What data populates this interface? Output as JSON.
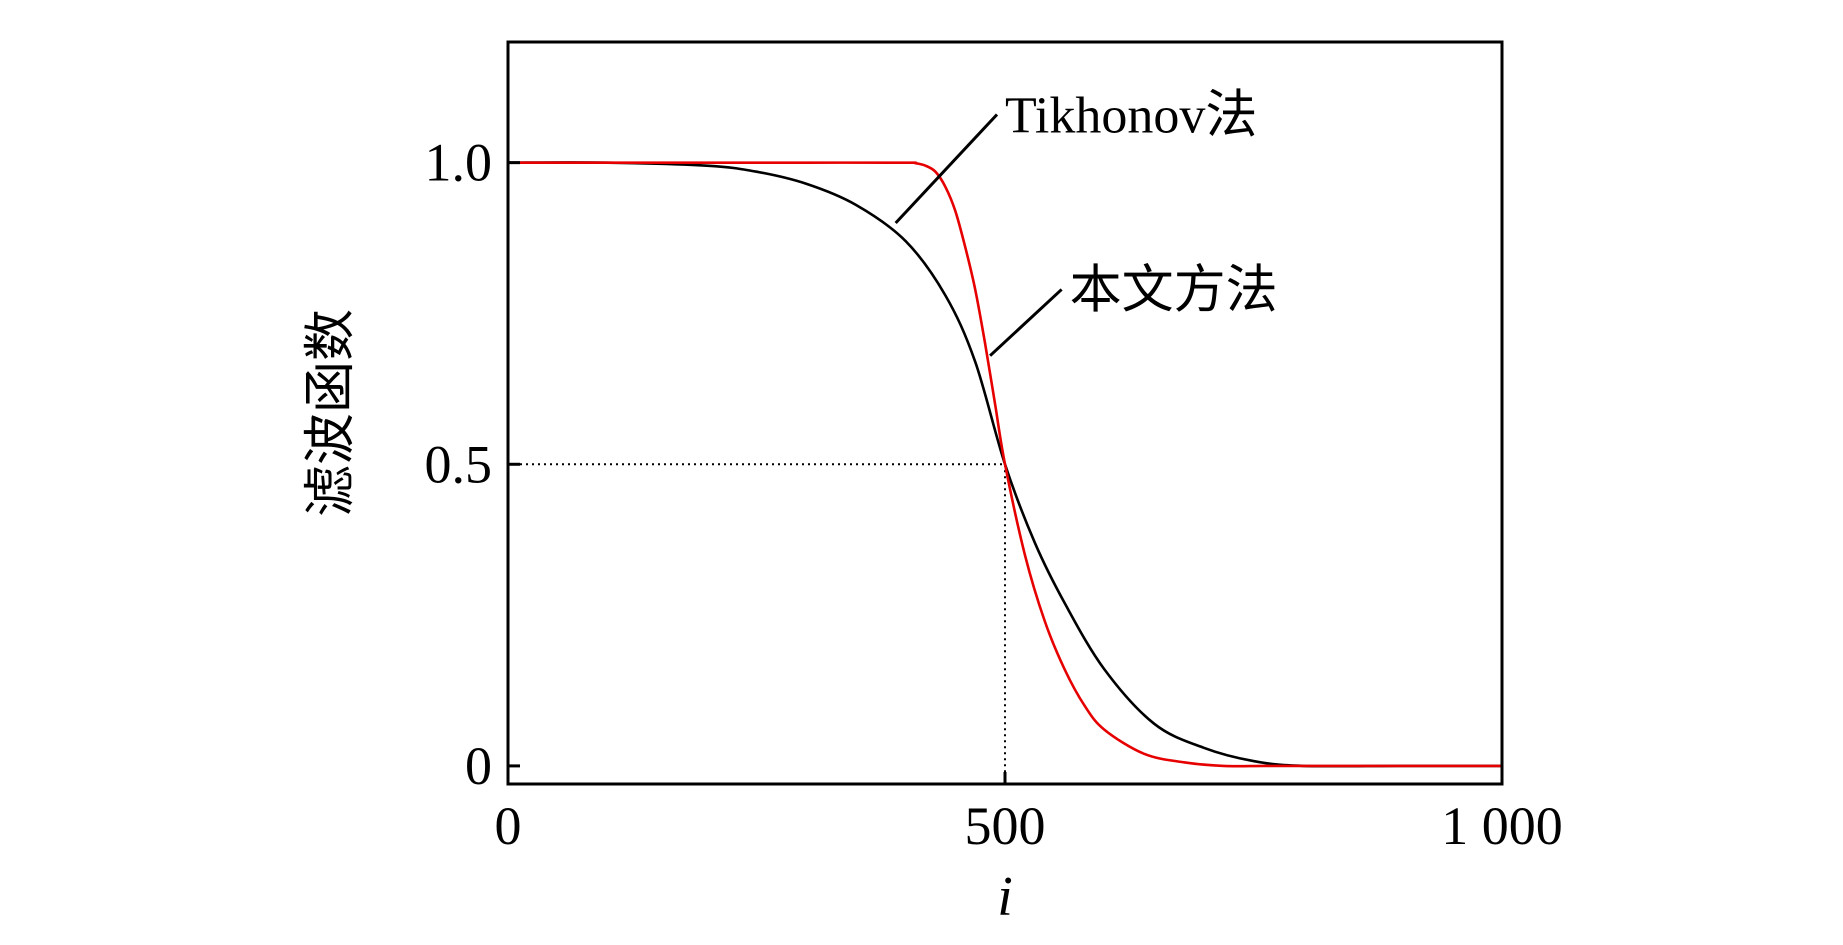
{
  "chart_data": {
    "type": "line",
    "title": "",
    "xlabel": "i",
    "ylabel": "滤波函数",
    "xlim": [
      0,
      1000
    ],
    "ylim": [
      -0.03,
      1.2
    ],
    "x_ticks": [
      {
        "value": 0,
        "label": "0"
      },
      {
        "value": 500,
        "label": "500"
      },
      {
        "value": 1000,
        "label": "1 000"
      }
    ],
    "y_ticks": [
      {
        "value": 0,
        "label": "0"
      },
      {
        "value": 0.5,
        "label": "0.5"
      },
      {
        "value": 1.0,
        "label": "1.0"
      }
    ],
    "grid": false,
    "legend": "none",
    "reference_lines": [
      {
        "from": [
          0,
          0.5
        ],
        "to": [
          500,
          0.5
        ],
        "style": "dotted"
      },
      {
        "from": [
          500,
          0.5
        ],
        "to": [
          500,
          -0.03
        ],
        "style": "dotted"
      }
    ],
    "series": [
      {
        "name": "Tikhonov法",
        "color": "#000000",
        "x": [
          0,
          100,
          200,
          250,
          300,
          350,
          400,
          440,
          470,
          500,
          530,
          560,
          600,
          650,
          700,
          750,
          800,
          900,
          1000
        ],
        "y": [
          1.0,
          1.0,
          0.995,
          0.985,
          0.965,
          0.93,
          0.87,
          0.78,
          0.67,
          0.5,
          0.37,
          0.27,
          0.16,
          0.07,
          0.03,
          0.008,
          0.0,
          0.0,
          0.0
        ]
      },
      {
        "name": "本文方法",
        "color": "#e60000",
        "x": [
          0,
          100,
          200,
          300,
          400,
          410,
          420,
          430,
          440,
          450,
          460,
          470,
          480,
          490,
          500,
          520,
          540,
          560,
          580,
          600,
          640,
          680,
          720,
          760,
          800,
          900,
          1000
        ],
        "y": [
          1.0,
          1.0,
          1.0,
          1.0,
          1.0,
          0.999,
          0.995,
          0.985,
          0.96,
          0.92,
          0.86,
          0.79,
          0.7,
          0.6,
          0.5,
          0.35,
          0.24,
          0.16,
          0.1,
          0.06,
          0.02,
          0.006,
          0.0,
          0.0,
          0.0,
          0.0,
          0.0
        ]
      }
    ],
    "annotations": [
      {
        "text": "Tikhonov法",
        "series": "Tikhonov法",
        "point": [
          390,
          0.9
        ],
        "label_at": [
          500,
          1.05
        ]
      },
      {
        "text": "本文方法",
        "series": "本文方法",
        "point": [
          485,
          0.68
        ],
        "label_at": [
          565,
          0.76
        ]
      }
    ]
  }
}
